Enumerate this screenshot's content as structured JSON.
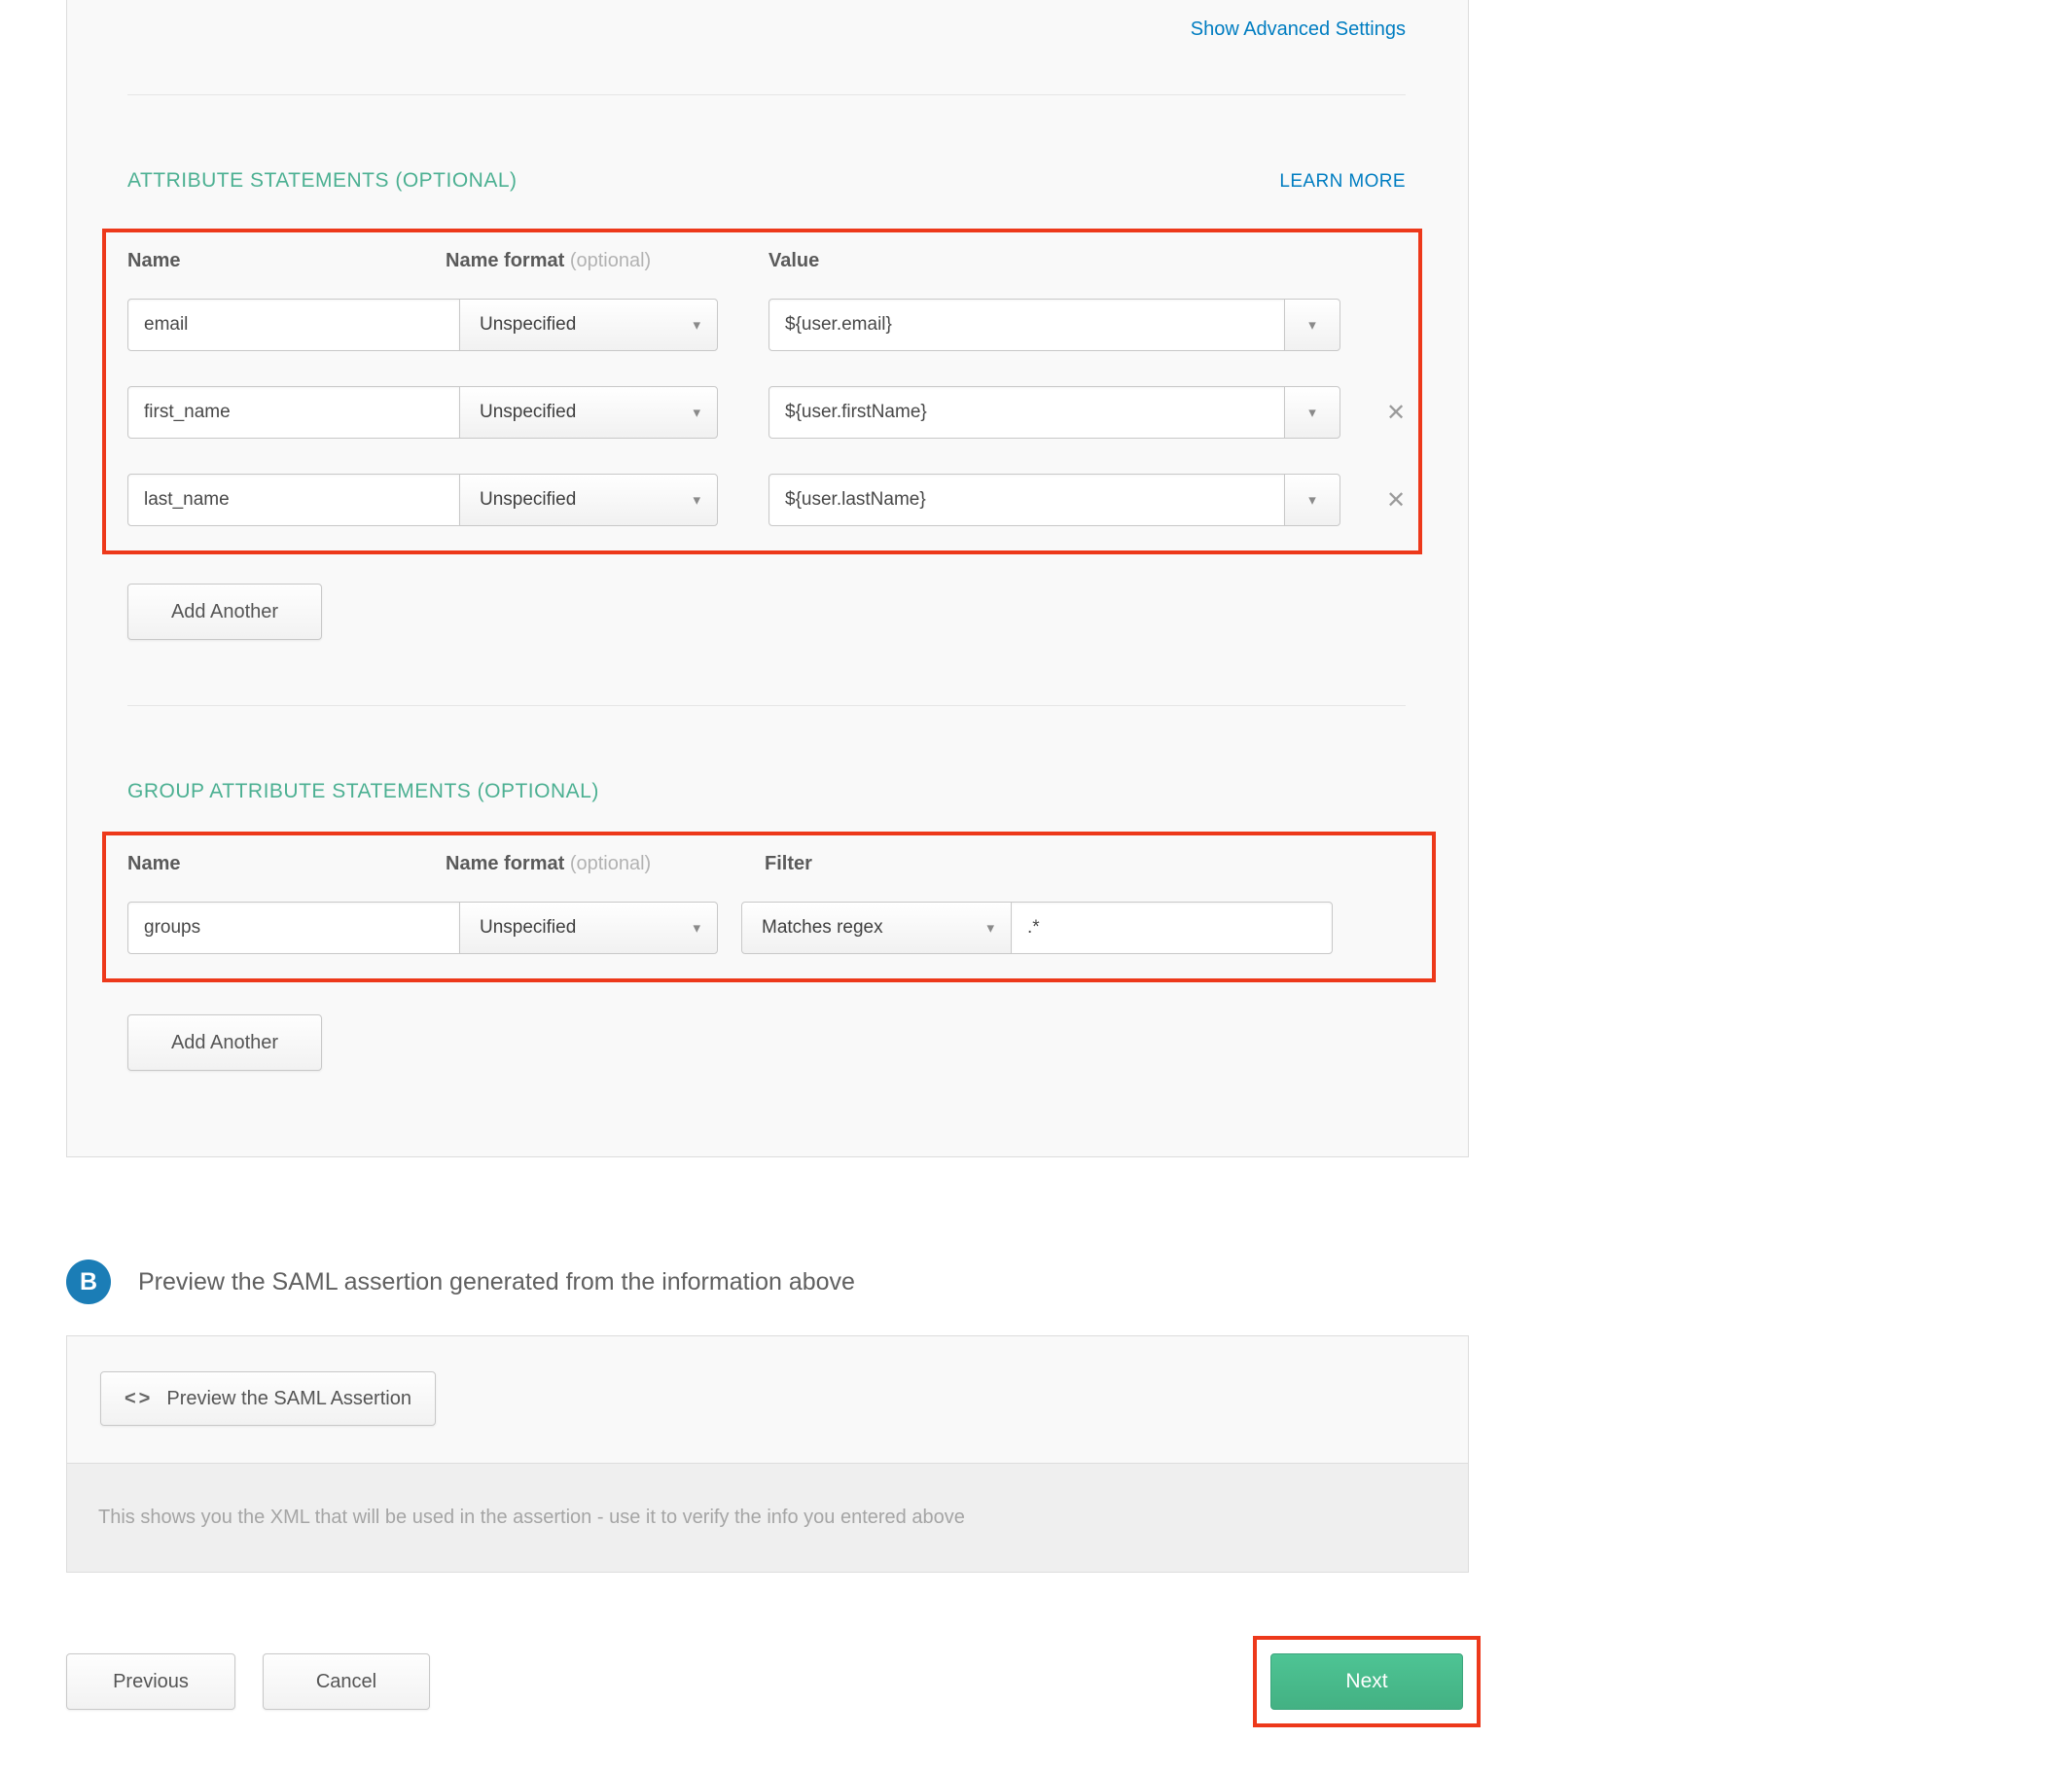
{
  "links": {
    "show_advanced": "Show Advanced Settings",
    "learn_more": "LEARN MORE"
  },
  "attribute_section": {
    "title": "ATTRIBUTE STATEMENTS (OPTIONAL)",
    "columns": {
      "name": "Name",
      "name_format": "Name format",
      "name_format_optional": " (optional)",
      "value": "Value"
    },
    "rows": [
      {
        "name": "email",
        "format": "Unspecified",
        "value": "${user.email}"
      },
      {
        "name": "first_name",
        "format": "Unspecified",
        "value": "${user.firstName}"
      },
      {
        "name": "last_name",
        "format": "Unspecified",
        "value": "${user.lastName}"
      }
    ],
    "add_button": "Add Another"
  },
  "group_section": {
    "title": "GROUP ATTRIBUTE STATEMENTS (OPTIONAL)",
    "columns": {
      "name": "Name",
      "name_format": "Name format",
      "name_format_optional": " (optional)",
      "filter": "Filter"
    },
    "rows": [
      {
        "name": "groups",
        "format": "Unspecified",
        "filter_type": "Matches regex",
        "filter_value": ".*"
      }
    ],
    "add_button": "Add Another"
  },
  "preview_section": {
    "badge": "B",
    "heading": "Preview the SAML assertion generated from the information above",
    "button_label": "Preview the SAML Assertion",
    "help_text": "This shows you the XML that will be used in the assertion - use it to verify the info you entered above"
  },
  "footer": {
    "previous": "Previous",
    "cancel": "Cancel",
    "next": "Next"
  },
  "icons": {
    "dropdown_arrow": "▾",
    "remove": "✕",
    "code": "<>"
  },
  "colors": {
    "section_green": "#4cb092",
    "link_blue": "#007dc1",
    "annotation_red": "#ed391b",
    "next_green": "#43b183",
    "badge_blue": "#1b7db6",
    "panel_bg": "#f9f9f9"
  }
}
